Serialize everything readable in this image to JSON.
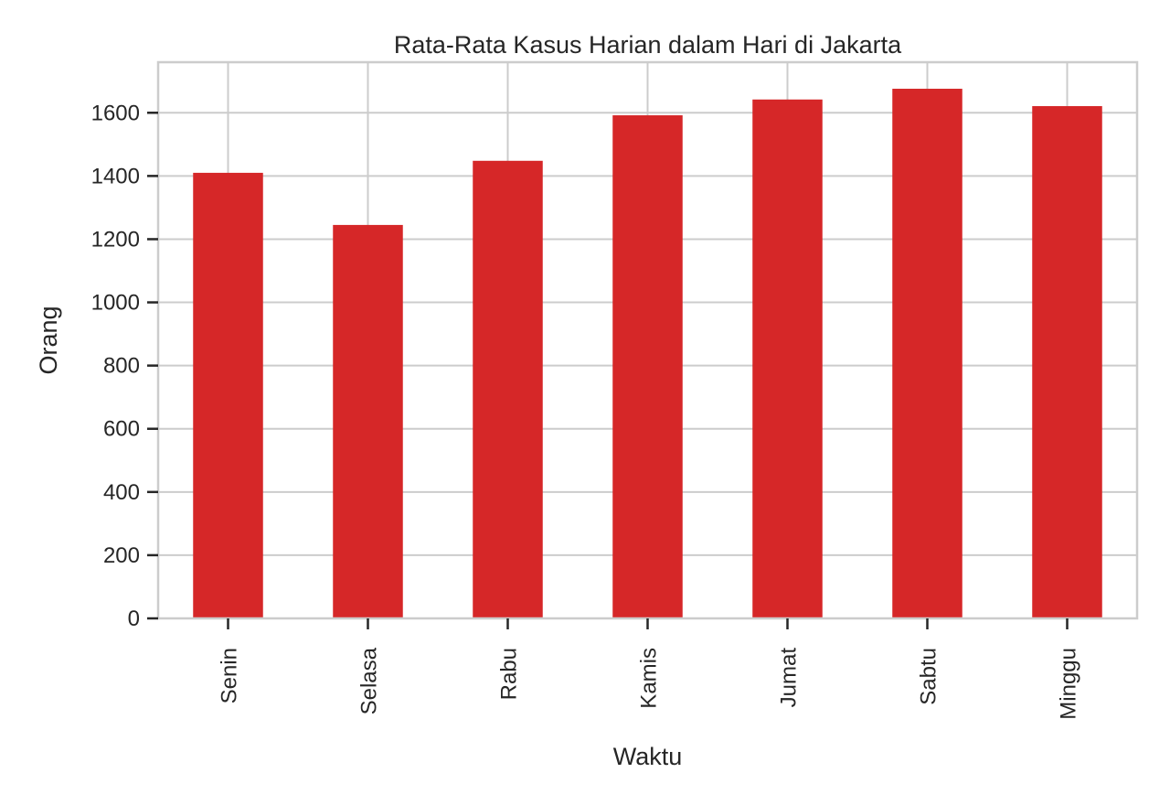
{
  "chart_data": {
    "type": "bar",
    "title": "Rata-Rata Kasus Harian dalam Hari di Jakarta",
    "xlabel": "Waktu",
    "ylabel": "Orang",
    "categories": [
      "Senin",
      "Selasa",
      "Rabu",
      "Kamis",
      "Jumat",
      "Sabtu",
      "Minggu"
    ],
    "values": [
      1410,
      1245,
      1448,
      1592,
      1642,
      1676,
      1621
    ],
    "ylim": [
      0,
      1760
    ],
    "yticks": [
      0,
      200,
      400,
      600,
      800,
      1000,
      1200,
      1400,
      1600
    ],
    "bar_color": "#d62728",
    "grid": true,
    "legend": "none"
  }
}
